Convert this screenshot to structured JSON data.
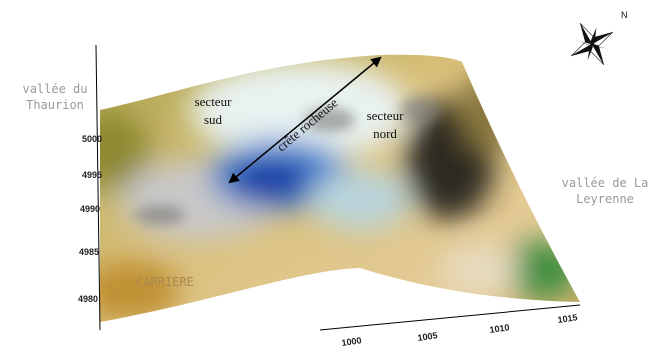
{
  "labels": {
    "valley_left": [
      "vallée du",
      "Thaurion"
    ],
    "sector_south": [
      "secteur",
      "sud"
    ],
    "ridge": "crête rocheuse",
    "sector_north": [
      "secteur",
      "nord"
    ],
    "valley_right": [
      "vallée de La",
      "Leyrenne"
    ],
    "quarry": "CARRIERE"
  },
  "axes": {
    "y_ticks": [
      "5000",
      "4995",
      "4990",
      "4985",
      "4980"
    ],
    "x_ticks": [
      "1000",
      "1005",
      "1010",
      "1015"
    ]
  },
  "compass": "N"
}
